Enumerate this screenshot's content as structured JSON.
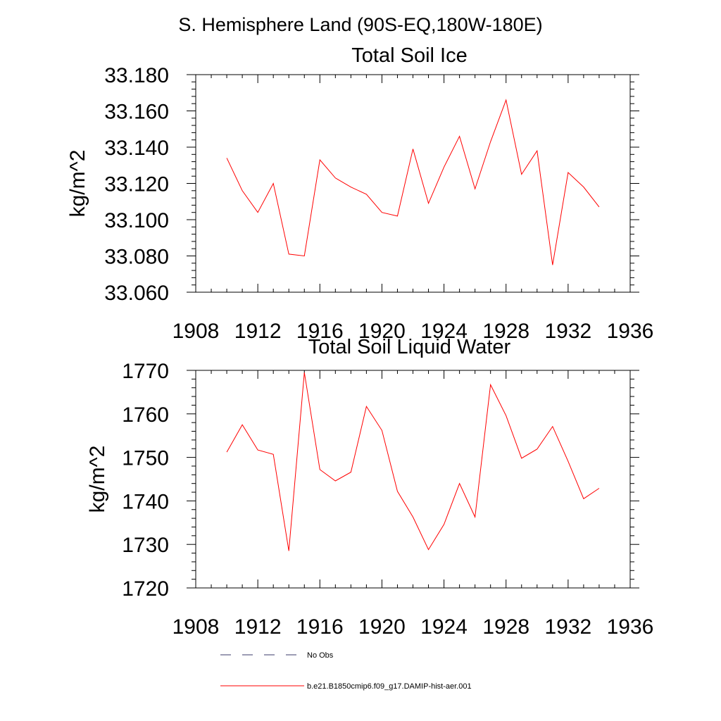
{
  "figure": {
    "title": "S. Hemisphere Land (90S-EQ,180W-180E)"
  },
  "legend": {
    "items": [
      {
        "label": "No Obs",
        "color": "#3a3a6a",
        "style": "dashed"
      },
      {
        "label": "b.e21.B1850cmip6.f09_g17.DAMIP-hist-aer.001",
        "color": "#ff0000",
        "style": "solid"
      }
    ]
  },
  "colors": {
    "series": "#ff0000",
    "axes": "#000000"
  },
  "chart_data": [
    {
      "type": "line",
      "title": "Total Soil Ice",
      "xlabel": "",
      "ylabel": "kg/m^2",
      "xlim": [
        1908,
        1936
      ],
      "ylim": [
        33.06,
        33.18
      ],
      "x_ticks": [
        1908,
        1912,
        1916,
        1920,
        1924,
        1928,
        1932,
        1936
      ],
      "x_tick_labels": [
        "1908",
        "1912",
        "1916",
        "1920",
        "1924",
        "1928",
        "1932",
        "1936"
      ],
      "y_ticks": [
        33.06,
        33.08,
        33.1,
        33.12,
        33.14,
        33.16,
        33.18
      ],
      "y_tick_labels": [
        "33.060",
        "33.080",
        "33.100",
        "33.120",
        "33.140",
        "33.160",
        "33.180"
      ],
      "grid": false,
      "series": [
        {
          "color": "#ff0000",
          "x": [
            1910,
            1911,
            1912,
            1913,
            1914,
            1915,
            1916,
            1917,
            1918,
            1919,
            1920,
            1921,
            1922,
            1923,
            1924,
            1925,
            1926,
            1927,
            1928,
            1929,
            1930,
            1931,
            1932,
            1933,
            1934
          ],
          "y": [
            33.134,
            33.116,
            33.104,
            33.12,
            33.081,
            33.08,
            33.133,
            33.123,
            33.118,
            33.114,
            33.104,
            33.102,
            33.139,
            33.109,
            33.129,
            33.146,
            33.117,
            33.143,
            33.166,
            33.125,
            33.138,
            33.075,
            33.126,
            33.118,
            33.107
          ]
        }
      ]
    },
    {
      "type": "line",
      "title": "Total Soil Liquid Water",
      "xlabel": "",
      "ylabel": "kg/m^2",
      "xlim": [
        1908,
        1936
      ],
      "ylim": [
        1720,
        1770
      ],
      "x_ticks": [
        1908,
        1912,
        1916,
        1920,
        1924,
        1928,
        1932,
        1936
      ],
      "x_tick_labels": [
        "1908",
        "1912",
        "1916",
        "1920",
        "1924",
        "1928",
        "1932",
        "1936"
      ],
      "y_ticks": [
        1720,
        1730,
        1740,
        1750,
        1760,
        1770
      ],
      "y_tick_labels": [
        "1720",
        "1730",
        "1740",
        "1750",
        "1760",
        "1770"
      ],
      "grid": false,
      "series": [
        {
          "color": "#ff0000",
          "x": [
            1910,
            1911,
            1912,
            1913,
            1914,
            1915,
            1916,
            1917,
            1918,
            1919,
            1920,
            1921,
            1922,
            1923,
            1924,
            1925,
            1926,
            1927,
            1928,
            1929,
            1930,
            1931,
            1932,
            1933,
            1934
          ],
          "y": [
            1751.2,
            1757.5,
            1751.7,
            1750.7,
            1728.5,
            1769.5,
            1747.2,
            1744.6,
            1746.6,
            1761.7,
            1756.2,
            1742.2,
            1736.3,
            1728.8,
            1734.6,
            1744.0,
            1736.3,
            1766.7,
            1759.6,
            1749.8,
            1751.9,
            1757.1,
            1749.1,
            1740.5,
            1742.9
          ]
        }
      ]
    }
  ]
}
